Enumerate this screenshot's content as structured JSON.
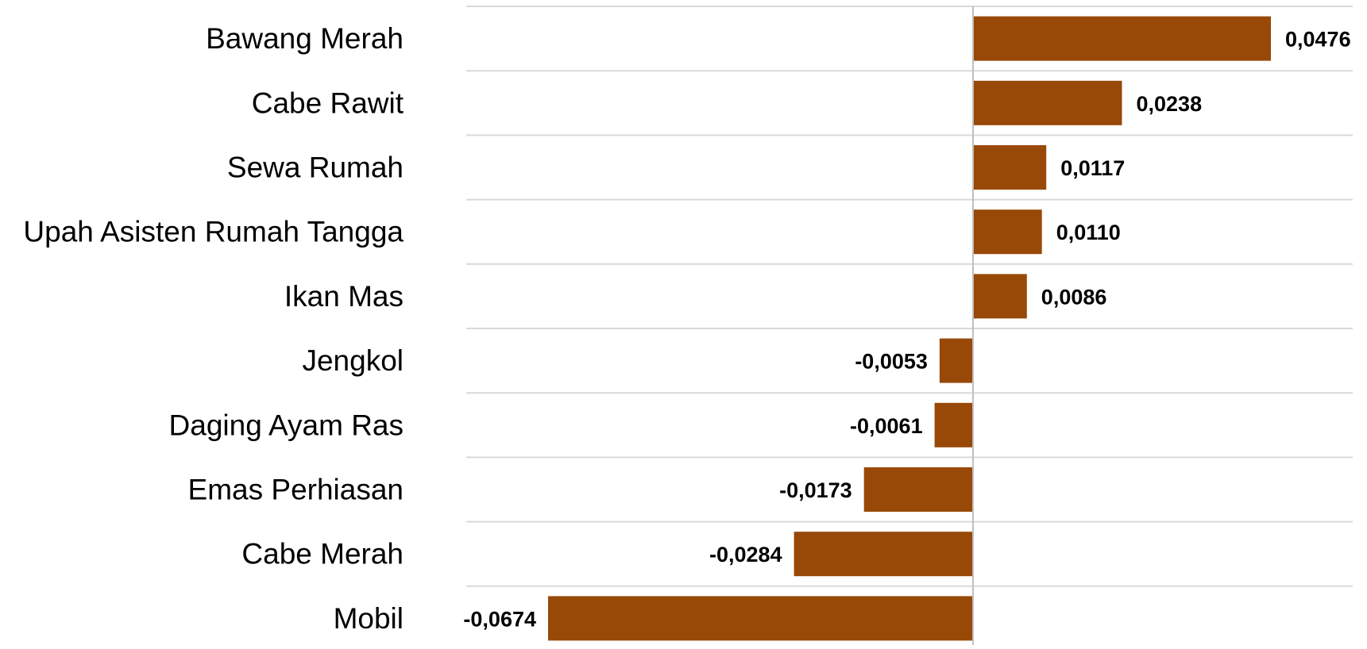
{
  "chart_data": {
    "type": "bar",
    "orientation": "horizontal",
    "title": "",
    "xlabel": "",
    "ylabel": "",
    "categories": [
      "Bawang Merah",
      "Cabe Rawit",
      "Sewa Rumah",
      "Upah Asisten Rumah Tangga",
      "Ikan Mas",
      "Jengkol",
      "Daging Ayam Ras",
      "Emas Perhiasan",
      "Cabe Merah",
      "Mobil"
    ],
    "values": [
      0.0476,
      0.0238,
      0.0117,
      0.011,
      0.0086,
      -0.0053,
      -0.0061,
      -0.0173,
      -0.0284,
      -0.0674
    ],
    "value_labels": [
      "0,0476",
      "0,0238",
      "0,0117",
      "0,0110",
      "0,0086",
      "-0,0053",
      "-0,0061",
      "-0,0173",
      "-0,0284",
      "-0,0674"
    ],
    "xlim": [
      -0.0674,
      0.0476
    ],
    "grid": "horizontal",
    "legend": "none",
    "colors": {
      "bar": "#984807",
      "grid": "#d9d9d9",
      "axis": "#bfbfbf",
      "text": "#000000"
    }
  }
}
